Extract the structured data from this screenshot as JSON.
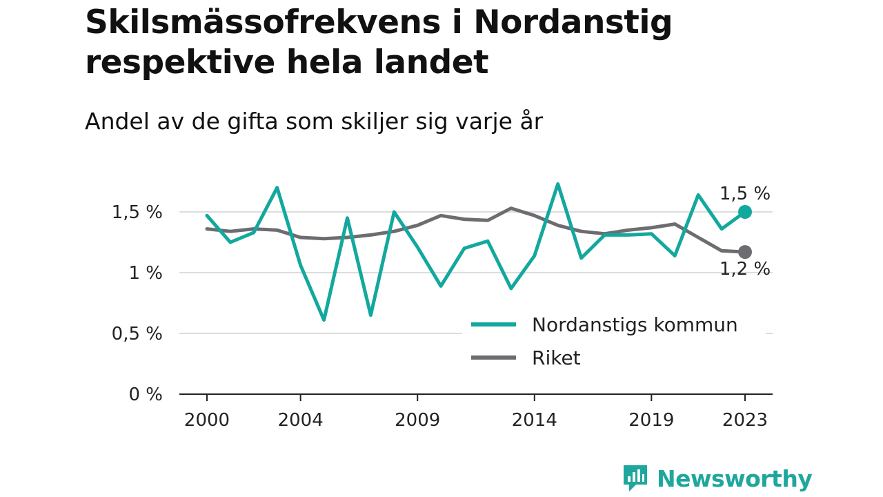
{
  "title": "Skilsmässofrekvens i Nordanstig respektive hela landet",
  "subtitle": "Andel av de gifta som skiljer sig varje år",
  "brand": {
    "name": "Newsworthy",
    "color": "#1ea79c"
  },
  "chart_data": {
    "type": "line",
    "x": [
      2000,
      2001,
      2002,
      2003,
      2004,
      2005,
      2006,
      2007,
      2008,
      2009,
      2010,
      2011,
      2012,
      2013,
      2014,
      2015,
      2016,
      2017,
      2018,
      2019,
      2020,
      2021,
      2022,
      2023
    ],
    "x_tick_values": [
      2000,
      2004,
      2009,
      2014,
      2019,
      2023
    ],
    "x_tick_labels": [
      "2000",
      "2004",
      "2009",
      "2014",
      "2019",
      "2023"
    ],
    "y_tick_values": [
      0,
      0.5,
      1,
      1.5
    ],
    "y_tick_labels": [
      "0 %",
      "0,5 %",
      "1 %",
      "1,5 %"
    ],
    "ylim": [
      0,
      1.85
    ],
    "grid": true,
    "legend_position": "bottom-right",
    "series": [
      {
        "name": "Nordanstigs kommun",
        "color": "#13a89e",
        "values": [
          1.47,
          1.25,
          1.33,
          1.7,
          1.06,
          0.61,
          1.45,
          0.65,
          1.5,
          1.21,
          0.89,
          1.2,
          1.26,
          0.87,
          1.14,
          1.73,
          1.12,
          1.31,
          1.31,
          1.32,
          1.14,
          1.64,
          1.36,
          1.5
        ],
        "end_label": "1,5 %"
      },
      {
        "name": "Riket",
        "color": "#6d6c70",
        "values": [
          1.36,
          1.34,
          1.36,
          1.35,
          1.29,
          1.28,
          1.29,
          1.31,
          1.34,
          1.39,
          1.47,
          1.44,
          1.43,
          1.53,
          1.47,
          1.39,
          1.34,
          1.32,
          1.35,
          1.37,
          1.4,
          1.29,
          1.18,
          1.17
        ],
        "end_label": "1,2 %"
      }
    ]
  }
}
